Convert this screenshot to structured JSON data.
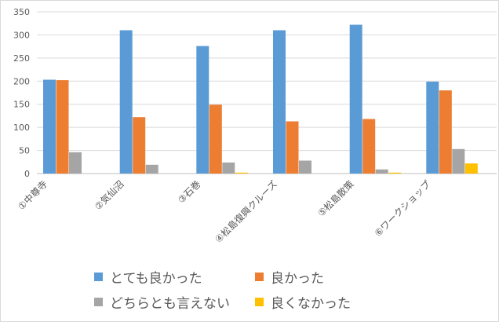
{
  "chart_data": {
    "type": "bar",
    "categories": [
      "①中尊寺",
      "②気仙沼",
      "③石巻",
      "④松島復興クルーズ",
      "⑤松島散策",
      "⑥ワークショップ"
    ],
    "series": [
      {
        "name": "とても良かった",
        "values": [
          203,
          310,
          276,
          310,
          322,
          199
        ],
        "color": "#5b9bd5"
      },
      {
        "name": "良かった",
        "values": [
          202,
          122,
          149,
          113,
          118,
          180
        ],
        "color": "#ed7d31"
      },
      {
        "name": "どちらとも言えない",
        "values": [
          46,
          19,
          24,
          28,
          9,
          53
        ],
        "color": "#a5a5a5"
      },
      {
        "name": "良くなかった",
        "values": [
          0,
          0,
          2,
          0,
          2,
          22
        ],
        "color": "#ffc000"
      }
    ],
    "yticks": [
      0,
      50,
      100,
      150,
      200,
      250,
      300,
      350
    ],
    "ylim": [
      0,
      350
    ],
    "grid": true,
    "legend_position": "bottom",
    "title": "",
    "xlabel": "",
    "ylabel": ""
  }
}
